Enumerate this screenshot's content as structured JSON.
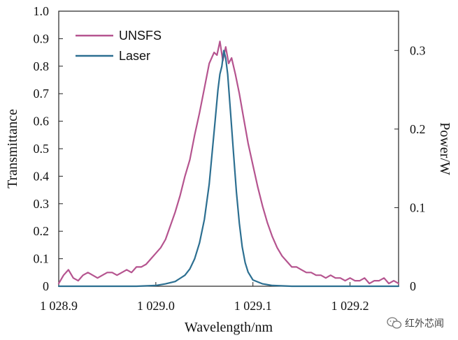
{
  "chart_data": {
    "type": "line",
    "title": "",
    "xlabel": "Wavelength/nm",
    "ylabel": "Transmittance",
    "y2label": "Power/W",
    "xlim": [
      1028.9,
      1029.25
    ],
    "ylim": [
      0,
      1.0
    ],
    "y2lim": [
      0,
      0.35
    ],
    "x_ticks": [
      1028.9,
      1029.0,
      1029.1,
      1029.2
    ],
    "x_tick_labels": [
      "1 028.9",
      "1 029.0",
      "1 029.1",
      "1 029.2"
    ],
    "y_ticks": [
      0,
      0.1,
      0.2,
      0.3,
      0.4,
      0.5,
      0.6,
      0.7,
      0.8,
      0.9,
      1.0
    ],
    "y_tick_labels": [
      "0",
      "0.1",
      "0.2",
      "0.3",
      "0.4",
      "0.5",
      "0.6",
      "0.7",
      "0.8",
      "0.9",
      "1.0"
    ],
    "y2_ticks": [
      0,
      0.1,
      0.2,
      0.3
    ],
    "y2_tick_labels": [
      "0",
      "0.1",
      "0.2",
      "0.3"
    ],
    "grid": false,
    "legend_position": "top-left",
    "series": [
      {
        "name": "UNSFS",
        "axis": "left",
        "color": "#b5548f",
        "x": [
          1028.9,
          1028.905,
          1028.91,
          1028.915,
          1028.92,
          1028.925,
          1028.93,
          1028.935,
          1028.94,
          1028.945,
          1028.95,
          1028.955,
          1028.96,
          1028.965,
          1028.97,
          1028.975,
          1028.98,
          1028.985,
          1028.99,
          1028.995,
          1029.0,
          1029.005,
          1029.01,
          1029.015,
          1029.02,
          1029.025,
          1029.03,
          1029.035,
          1029.04,
          1029.045,
          1029.05,
          1029.055,
          1029.06,
          1029.063,
          1029.066,
          1029.069,
          1029.072,
          1029.075,
          1029.078,
          1029.082,
          1029.086,
          1029.09,
          1029.095,
          1029.1,
          1029.105,
          1029.11,
          1029.115,
          1029.12,
          1029.125,
          1029.13,
          1029.135,
          1029.14,
          1029.145,
          1029.15,
          1029.155,
          1029.16,
          1029.165,
          1029.17,
          1029.175,
          1029.18,
          1029.185,
          1029.19,
          1029.195,
          1029.2,
          1029.205,
          1029.21,
          1029.215,
          1029.22,
          1029.225,
          1029.23,
          1029.235,
          1029.24,
          1029.245,
          1029.25
        ],
        "y": [
          0.01,
          0.04,
          0.06,
          0.03,
          0.02,
          0.04,
          0.05,
          0.04,
          0.03,
          0.04,
          0.05,
          0.05,
          0.04,
          0.05,
          0.06,
          0.05,
          0.07,
          0.07,
          0.08,
          0.1,
          0.12,
          0.14,
          0.17,
          0.22,
          0.27,
          0.33,
          0.4,
          0.46,
          0.55,
          0.63,
          0.72,
          0.81,
          0.85,
          0.84,
          0.89,
          0.82,
          0.87,
          0.81,
          0.83,
          0.77,
          0.7,
          0.62,
          0.52,
          0.44,
          0.36,
          0.29,
          0.23,
          0.18,
          0.14,
          0.11,
          0.09,
          0.07,
          0.07,
          0.06,
          0.05,
          0.05,
          0.04,
          0.04,
          0.03,
          0.04,
          0.03,
          0.03,
          0.02,
          0.03,
          0.02,
          0.02,
          0.03,
          0.01,
          0.02,
          0.02,
          0.03,
          0.01,
          0.02,
          0.01
        ]
      },
      {
        "name": "Laser",
        "axis": "right",
        "color": "#2c6f91",
        "x": [
          1028.9,
          1028.92,
          1028.94,
          1028.96,
          1028.98,
          1029.0,
          1029.01,
          1029.02,
          1029.03,
          1029.035,
          1029.04,
          1029.045,
          1029.05,
          1029.055,
          1029.058,
          1029.061,
          1029.064,
          1029.066,
          1029.068,
          1029.07,
          1029.072,
          1029.074,
          1029.077,
          1029.08,
          1029.083,
          1029.086,
          1029.089,
          1029.092,
          1029.095,
          1029.1,
          1029.11,
          1029.12,
          1029.14,
          1029.16,
          1029.2,
          1029.25
        ],
        "y": [
          0.0,
          0.0,
          0.0,
          0.0,
          0.0,
          0.001,
          0.003,
          0.006,
          0.014,
          0.022,
          0.035,
          0.055,
          0.085,
          0.13,
          0.17,
          0.21,
          0.25,
          0.27,
          0.28,
          0.3,
          0.29,
          0.27,
          0.22,
          0.17,
          0.12,
          0.08,
          0.05,
          0.03,
          0.018,
          0.008,
          0.003,
          0.001,
          0.0,
          0.0,
          0.0,
          0.0
        ]
      }
    ]
  },
  "watermark": {
    "text": "红外芯闻",
    "icon": "wechat-icon"
  }
}
